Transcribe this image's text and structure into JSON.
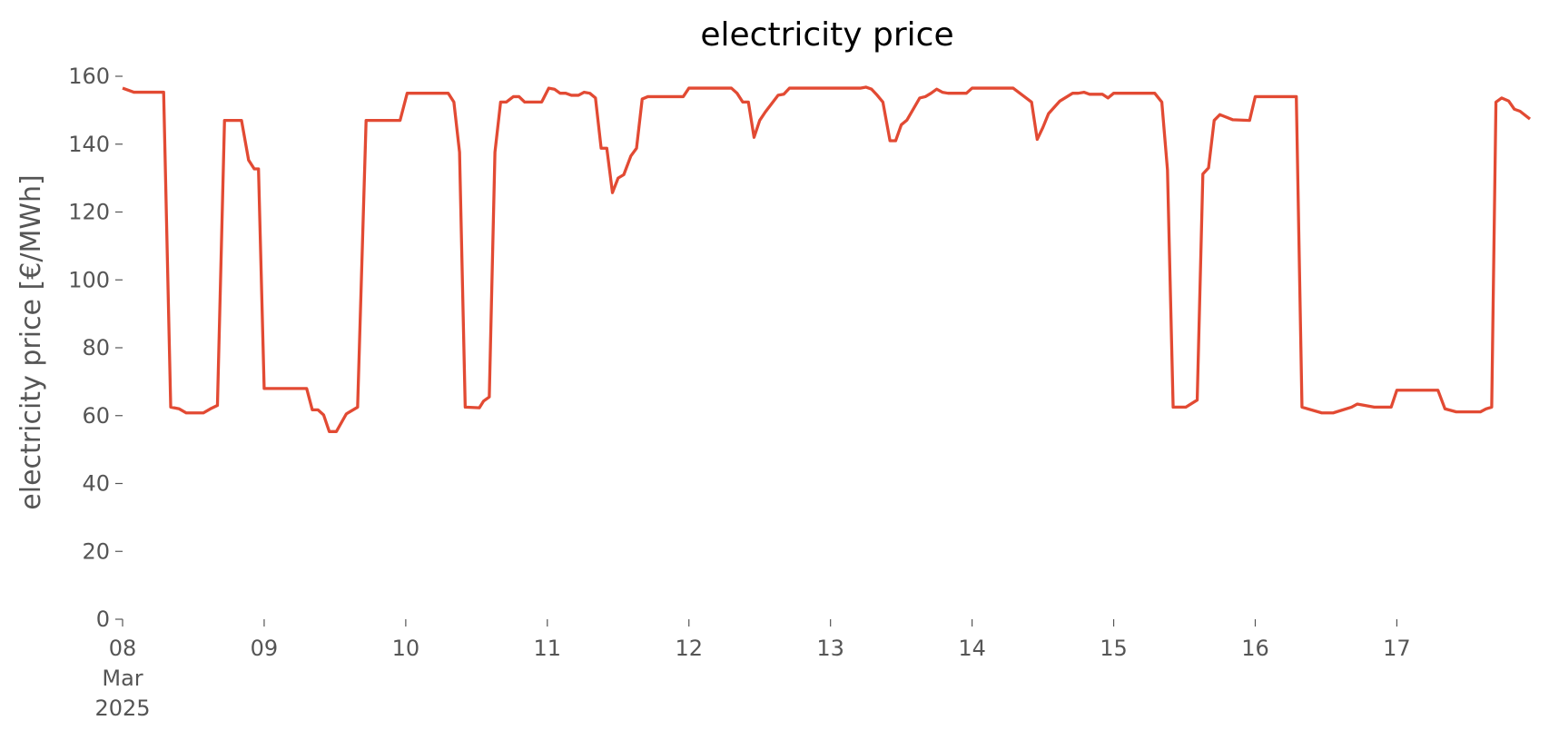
{
  "chart_data": {
    "type": "line",
    "title": "electricity price",
    "ylabel": "electricity price [€/MWh]",
    "x": [
      8.0,
      8.08,
      8.29,
      8.34,
      8.4,
      8.45,
      8.57,
      8.62,
      8.67,
      8.72,
      8.84,
      8.89,
      8.93,
      8.96,
      9.0,
      9.3,
      9.34,
      9.38,
      9.42,
      9.46,
      9.51,
      9.58,
      9.66,
      9.72,
      9.96,
      10.01,
      10.3,
      10.34,
      10.38,
      10.42,
      10.52,
      10.55,
      10.59,
      10.63,
      10.67,
      10.71,
      10.76,
      10.8,
      10.84,
      10.96,
      11.01,
      11.05,
      11.09,
      11.13,
      11.17,
      11.22,
      11.26,
      11.3,
      11.34,
      11.38,
      11.42,
      11.46,
      11.5,
      11.54,
      11.59,
      11.63,
      11.67,
      11.71,
      11.96,
      12.0,
      12.3,
      12.34,
      12.38,
      12.42,
      12.46,
      12.5,
      12.54,
      12.63,
      12.67,
      12.71,
      13.21,
      13.25,
      13.29,
      13.33,
      13.37,
      13.42,
      13.46,
      13.5,
      13.54,
      13.63,
      13.67,
      13.71,
      13.75,
      13.79,
      13.83,
      13.96,
      14.0,
      14.29,
      14.42,
      14.46,
      14.5,
      14.54,
      14.62,
      14.71,
      14.75,
      14.79,
      14.83,
      14.92,
      14.96,
      15.0,
      15.29,
      15.34,
      15.38,
      15.42,
      15.51,
      15.59,
      15.63,
      15.67,
      15.71,
      15.75,
      15.84,
      15.96,
      16.0,
      16.29,
      16.33,
      16.47,
      16.55,
      16.68,
      16.72,
      16.84,
      16.96,
      17.0,
      17.29,
      17.34,
      17.42,
      17.59,
      17.63,
      17.67,
      17.7,
      17.74,
      17.79,
      17.83,
      17.87,
      17.94
    ],
    "series": [
      {
        "name": "electricity price",
        "color": "#e24a33",
        "values": [
          156.5,
          155.3,
          155.3,
          62.5,
          62,
          60.8,
          60.8,
          62,
          63,
          147,
          147,
          135.3,
          132.7,
          132.7,
          68,
          68,
          61.7,
          61.7,
          60.2,
          55.3,
          55.3,
          60.5,
          62.5,
          147,
          147,
          155,
          155,
          152.4,
          137.6,
          62.5,
          62.3,
          64.3,
          65.5,
          137.6,
          152.4,
          152.4,
          154,
          154,
          152.4,
          152.4,
          156.5,
          156.2,
          155,
          155,
          154.4,
          154.4,
          155.3,
          155,
          153.6,
          138.8,
          138.8,
          125.7,
          130,
          131,
          136.5,
          138.8,
          153.3,
          154,
          154,
          156.5,
          156.5,
          155,
          152.4,
          152.4,
          142,
          147,
          149.5,
          154.4,
          154.7,
          156.5,
          156.5,
          156.8,
          156.2,
          154.4,
          152.4,
          141,
          141,
          145.7,
          147.1,
          153.6,
          154,
          155,
          156.2,
          155.3,
          155,
          155,
          156.5,
          156.5,
          152.4,
          141.4,
          144.9,
          149,
          152.7,
          155,
          155,
          155.3,
          154.7,
          154.7,
          153.6,
          155,
          155,
          152.4,
          132.4,
          62.5,
          62.5,
          64.6,
          131.2,
          133,
          147,
          148.7,
          147.2,
          147,
          154,
          154,
          62.5,
          60.8,
          60.8,
          62.5,
          63.4,
          62.5,
          62.5,
          67.5,
          67.5,
          62,
          61.1,
          61.1,
          62,
          62.5,
          152.4,
          153.6,
          152.7,
          150.3,
          149.7,
          147.4
        ]
      }
    ],
    "xlim": [
      8,
      17.94
    ],
    "xticks": [
      {
        "value": 8,
        "label": "08\nMar\n2025"
      },
      {
        "value": 9,
        "label": "09"
      },
      10,
      11,
      12,
      13,
      14,
      15,
      16,
      17
    ],
    "ylim": [
      0,
      160
    ],
    "yticks": [
      0,
      20,
      40,
      60,
      80,
      100,
      120,
      140,
      160
    ],
    "grid": false
  }
}
